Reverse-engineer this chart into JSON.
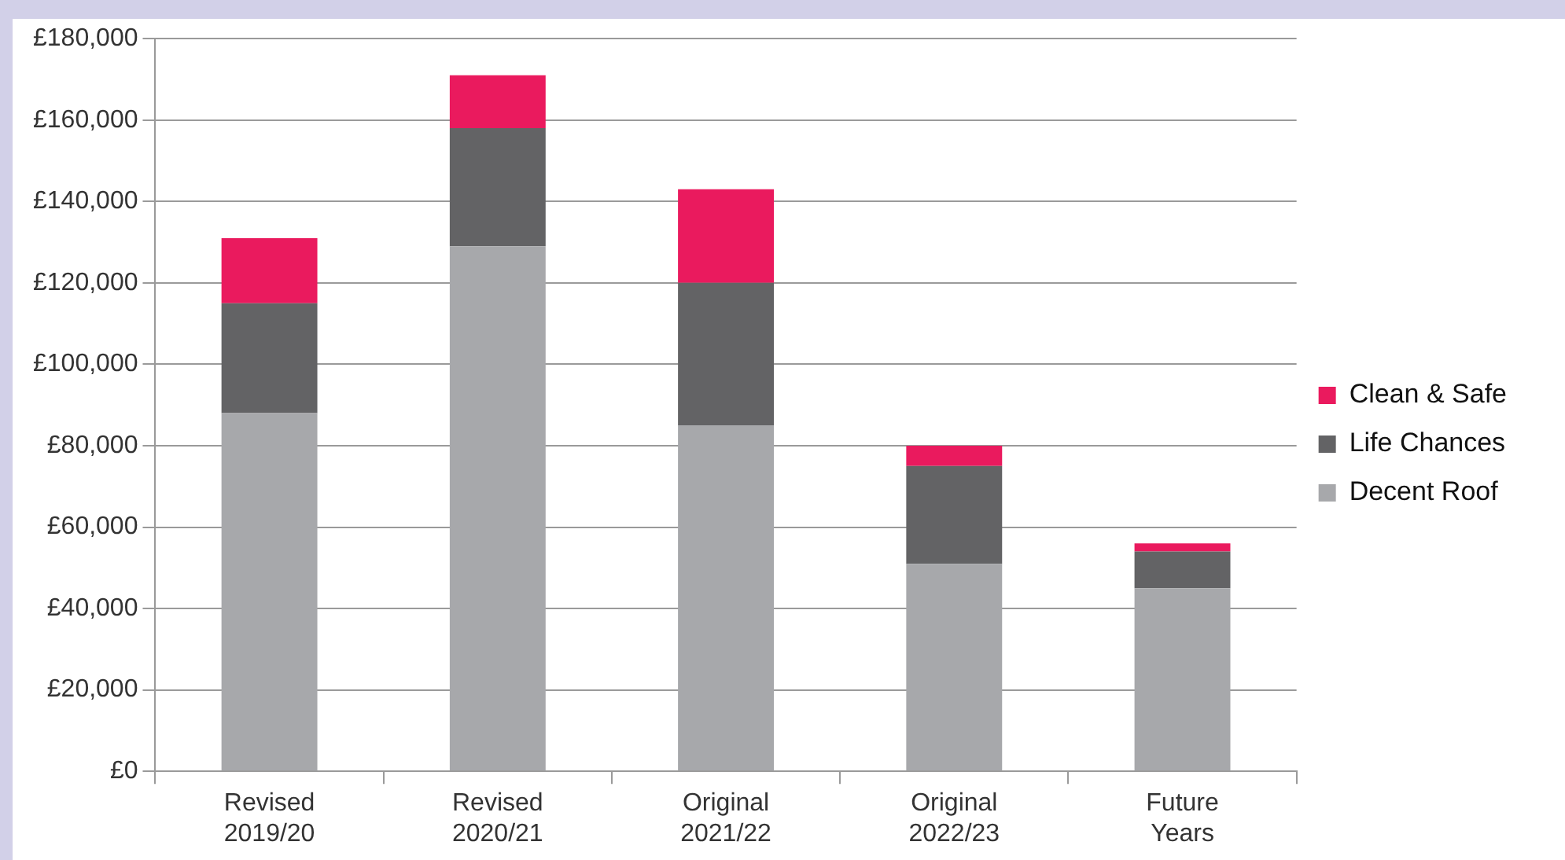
{
  "chart_data": {
    "type": "bar",
    "stacked": true,
    "categories": [
      "Revised\n2019/20",
      "Revised\n2020/21",
      "Original\n2021/22",
      "Original\n2022/23",
      "Future\nYears"
    ],
    "series": [
      {
        "name": "Decent Roof",
        "color": "#a7a8ab",
        "values": [
          88000,
          129000,
          85000,
          51000,
          45000
        ]
      },
      {
        "name": "Life Chances",
        "color": "#636365",
        "values": [
          27000,
          29000,
          35000,
          24000,
          9000
        ]
      },
      {
        "name": "Clean & Safe",
        "color": "#ea1a5e",
        "values": [
          16000,
          13000,
          23000,
          5000,
          2000
        ]
      }
    ],
    "ylim": [
      0,
      180000
    ],
    "yticks": [
      {
        "value": 0,
        "label": "£0"
      },
      {
        "value": 20000,
        "label": "£20,000"
      },
      {
        "value": 40000,
        "label": "£40,000"
      },
      {
        "value": 60000,
        "label": "£60,000"
      },
      {
        "value": 80000,
        "label": "£80,000"
      },
      {
        "value": 100000,
        "label": "£100,000"
      },
      {
        "value": 120000,
        "label": "£120,000"
      },
      {
        "value": 140000,
        "label": "£140,000"
      },
      {
        "value": 160000,
        "label": "£160,000"
      },
      {
        "value": 180000,
        "label": "£180,000"
      }
    ],
    "grid": "y",
    "legend": "right"
  }
}
